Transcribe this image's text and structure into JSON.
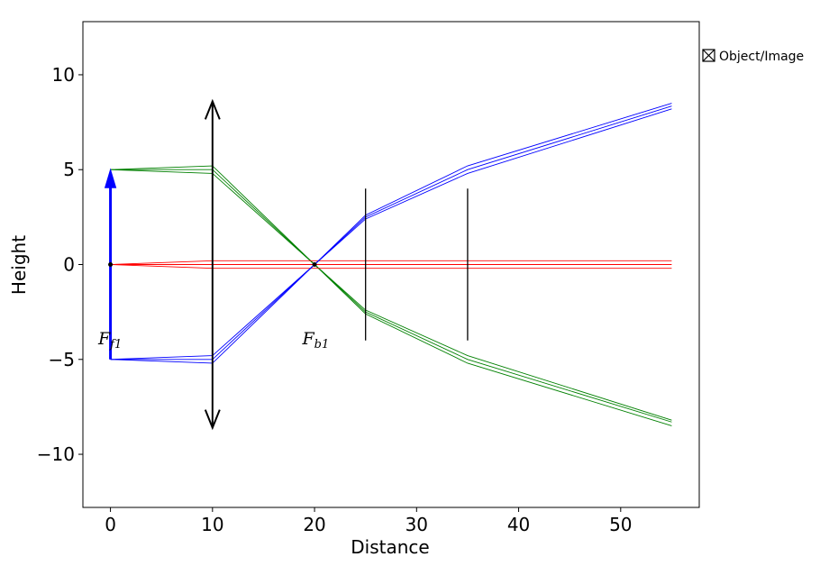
{
  "chart_data": {
    "type": "line",
    "title": "",
    "xlabel": "Distance",
    "ylabel": "Height",
    "xlim": [
      -2.7,
      57.7
    ],
    "ylim": [
      -12.8,
      12.8
    ],
    "x_ticks": [
      0,
      10,
      20,
      30,
      40,
      50
    ],
    "y_ticks": [
      -10,
      -5,
      0,
      5,
      10
    ],
    "x_tick_labels": [
      "0",
      "10",
      "20",
      "30",
      "40",
      "50"
    ],
    "y_tick_labels": [
      "−10",
      "−5",
      "0",
      "5",
      "10"
    ],
    "grid": false,
    "legend": {
      "placement": "outside-right-top",
      "entries": [
        "Object/Image"
      ]
    },
    "colors": {
      "object": "#0000ff",
      "lens": "#000000",
      "ray_top": "#008000",
      "ray_axis": "#ff0000",
      "ray_bottom": "#0000ff",
      "aperture": "#000000"
    },
    "object": {
      "x": 0,
      "y_start": -5,
      "y_end": 5
    },
    "lens": {
      "x": 10,
      "y_min": -8.6,
      "y_max": 8.6
    },
    "apertures": [
      {
        "x": 25,
        "y_min": -4,
        "y_max": 4
      },
      {
        "x": 35,
        "y_min": -4,
        "y_max": 4
      }
    ],
    "focal_points": [
      {
        "x": 0,
        "y": 0,
        "label_main": "F",
        "label_sub": "f1",
        "label_x": -1.2,
        "label_y": -4.2
      },
      {
        "x": 20,
        "y": 0,
        "label_main": "F",
        "label_sub": "b1",
        "label_x": 18.8,
        "label_y": -4.2
      }
    ],
    "series": [
      {
        "x": [
          0,
          10,
          20,
          25,
          35,
          55
        ],
        "y": [
          5,
          5.2,
          0,
          -2.6,
          -5.2,
          -8.5
        ],
        "color": "ray_top"
      },
      {
        "x": [
          0,
          10,
          20,
          25,
          35,
          55
        ],
        "y": [
          5,
          5.0,
          0,
          -2.5,
          -5.0,
          -8.3
        ],
        "color": "ray_top"
      },
      {
        "x": [
          0,
          10,
          20,
          25,
          35,
          55
        ],
        "y": [
          5,
          4.8,
          0,
          -2.4,
          -4.8,
          -8.2
        ],
        "color": "ray_top"
      },
      {
        "x": [
          0,
          10,
          20,
          25,
          35,
          55
        ],
        "y": [
          0,
          0.2,
          0.2,
          0.2,
          0.2,
          0.2
        ],
        "color": "ray_axis"
      },
      {
        "x": [
          0,
          10,
          20,
          25,
          35,
          55
        ],
        "y": [
          0,
          0,
          0,
          0,
          0,
          0
        ],
        "color": "ray_axis"
      },
      {
        "x": [
          0,
          10,
          20,
          25,
          35,
          55
        ],
        "y": [
          0,
          -0.2,
          -0.2,
          -0.2,
          -0.2,
          -0.2
        ],
        "color": "ray_axis"
      },
      {
        "x": [
          0,
          10,
          20,
          25,
          35,
          55
        ],
        "y": [
          -5,
          -4.8,
          0,
          2.4,
          4.8,
          8.2
        ],
        "color": "ray_bottom"
      },
      {
        "x": [
          0,
          10,
          20,
          25,
          35,
          55
        ],
        "y": [
          -5,
          -5.0,
          0,
          2.5,
          5.0,
          8.35
        ],
        "color": "ray_bottom"
      },
      {
        "x": [
          0,
          10,
          20,
          25,
          35,
          55
        ],
        "y": [
          -5,
          -5.2,
          0,
          2.6,
          5.2,
          8.5
        ],
        "color": "ray_bottom"
      }
    ]
  }
}
